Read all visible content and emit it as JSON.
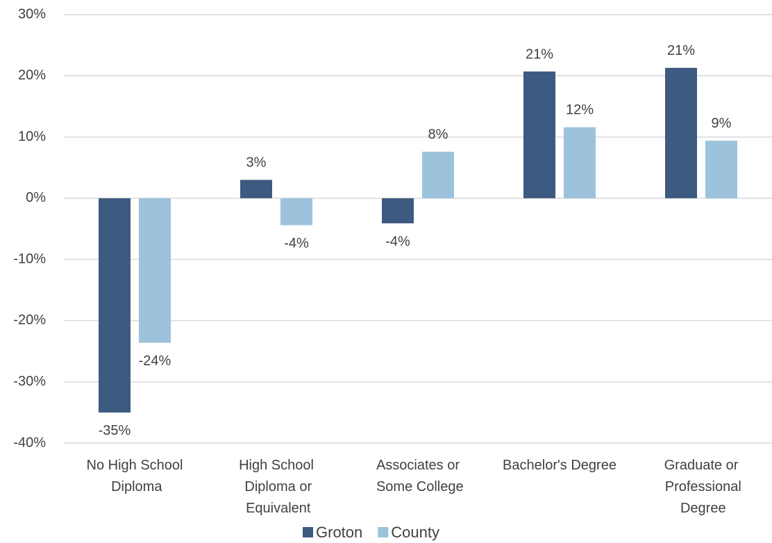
{
  "chart_data": {
    "type": "bar",
    "categories": [
      "No High School Diploma",
      "High School Diploma or Equivalent",
      "Associates or Some College",
      "Bachelor's Degree",
      "Graduate or Professional Degree"
    ],
    "series": [
      {
        "name": "Groton",
        "color": "#3d5a80",
        "values": [
          -35,
          3,
          -4.1,
          20.7,
          21.3
        ],
        "value_labels": [
          "-35%",
          "3%",
          "-4%",
          "21%",
          "21%"
        ]
      },
      {
        "name": "County",
        "color": "#9dc3dc",
        "values": [
          -23.6,
          -4.4,
          7.6,
          11.6,
          9.4
        ],
        "value_labels": [
          "-24%",
          "-4%",
          "8%",
          "12%",
          "9%"
        ]
      }
    ],
    "ylim": [
      -40,
      30
    ],
    "yticks": [
      {
        "value": -40,
        "label": "-40%"
      },
      {
        "value": -30,
        "label": "-30%"
      },
      {
        "value": -20,
        "label": "-20%"
      },
      {
        "value": -10,
        "label": "-10%"
      },
      {
        "value": 0,
        "label": "0%"
      },
      {
        "value": 10,
        "label": "10%"
      },
      {
        "value": 20,
        "label": "20%"
      },
      {
        "value": 30,
        "label": "30%"
      }
    ],
    "grid": true,
    "legend": "bottom"
  }
}
